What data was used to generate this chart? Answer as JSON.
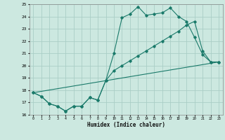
{
  "xlabel": "Humidex (Indice chaleur)",
  "bg_color": "#cce8e0",
  "grid_color": "#aacec6",
  "line_color": "#1a7a6a",
  "xlim": [
    -0.5,
    23.5
  ],
  "ylim": [
    16,
    25
  ],
  "xticks": [
    0,
    1,
    2,
    3,
    4,
    5,
    6,
    7,
    8,
    9,
    10,
    11,
    12,
    13,
    14,
    15,
    16,
    17,
    18,
    19,
    20,
    21,
    22,
    23
  ],
  "yticks": [
    16,
    17,
    18,
    19,
    20,
    21,
    22,
    23,
    24,
    25
  ],
  "line1_x": [
    0,
    1,
    2,
    3,
    4,
    5,
    6,
    7,
    8,
    9,
    10,
    11,
    12,
    13,
    14,
    15,
    16,
    17,
    18,
    19,
    20,
    21,
    22,
    23
  ],
  "line1_y": [
    17.8,
    17.5,
    16.9,
    16.7,
    16.3,
    16.7,
    16.7,
    17.4,
    17.2,
    18.8,
    21.0,
    23.9,
    24.2,
    24.8,
    24.1,
    24.2,
    24.3,
    24.7,
    24.0,
    23.6,
    22.3,
    20.9,
    20.3,
    20.3
  ],
  "line2_x": [
    0,
    1,
    2,
    3,
    4,
    5,
    6,
    7,
    8,
    9,
    10,
    11,
    12,
    13,
    14,
    15,
    16,
    17,
    18,
    19,
    20,
    21,
    22,
    23
  ],
  "line2_y": [
    17.8,
    17.5,
    16.9,
    16.7,
    16.3,
    16.7,
    16.7,
    17.4,
    17.2,
    18.8,
    19.6,
    20.0,
    20.4,
    20.8,
    21.2,
    21.6,
    22.0,
    22.4,
    22.8,
    23.3,
    23.6,
    21.2,
    20.3,
    20.3
  ],
  "line3_x": [
    0,
    23
  ],
  "line3_y": [
    17.8,
    20.3
  ]
}
